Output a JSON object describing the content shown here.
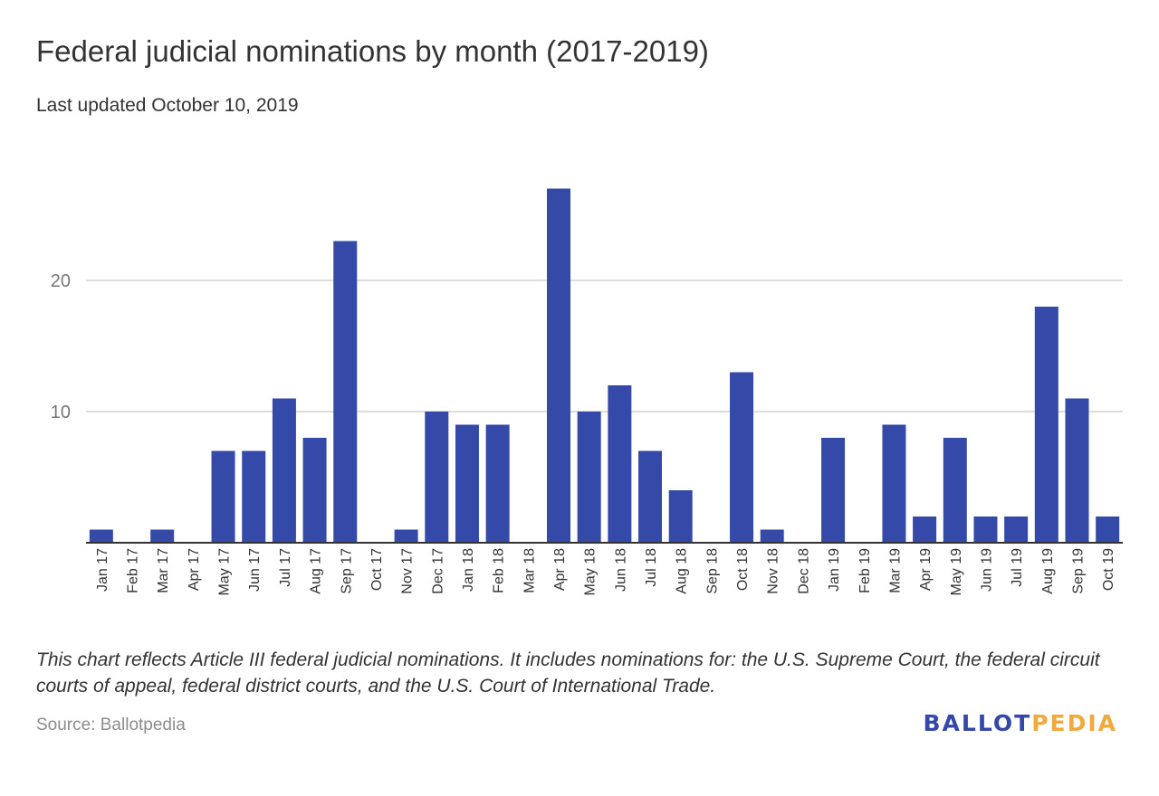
{
  "header": {
    "title": "Federal judicial nominations by month (2017-2019)",
    "subtitle": "Last updated October 10, 2019"
  },
  "footer": {
    "note": "This chart reflects Article III federal judicial nominations. It includes nominations for: the U.S. Supreme Court, the federal circuit courts of appeal, federal district courts, and the U.S. Court of International Trade.",
    "source": "Source: Ballotpedia",
    "brand_part1": "BALLOT",
    "brand_part2": "PEDIA",
    "brand_colors": {
      "primary": "#3448a8",
      "accent": "#f0a93b"
    }
  },
  "chart_data": {
    "type": "bar",
    "title": "Federal judicial nominations by month (2017-2019)",
    "subtitle": "Last updated October 10, 2019",
    "xlabel": "",
    "ylabel": "",
    "ylim": [
      0,
      28
    ],
    "yticks": [
      10,
      20
    ],
    "grid": true,
    "legend": "none",
    "bar_color": "#3449a8",
    "categories": [
      "Jan 17",
      "Feb 17",
      "Mar 17",
      "Apr 17",
      "May 17",
      "Jun 17",
      "Jul 17",
      "Aug 17",
      "Sep 17",
      "Oct 17",
      "Nov 17",
      "Dec 17",
      "Jan 18",
      "Feb 18",
      "Mar 18",
      "Apr 18",
      "May 18",
      "Jun 18",
      "Jul 18",
      "Aug 18",
      "Sep 18",
      "Oct 18",
      "Nov 18",
      "Dec 18",
      "Jan 19",
      "Feb 19",
      "Mar 19",
      "Apr 19",
      "May 19",
      "Jun 19",
      "Jul 19",
      "Aug 19",
      "Sep 19",
      "Oct 19"
    ],
    "values": [
      1,
      0,
      1,
      0,
      7,
      7,
      11,
      8,
      23,
      0,
      1,
      10,
      9,
      9,
      0,
      27,
      10,
      12,
      7,
      4,
      0,
      13,
      1,
      0,
      8,
      0,
      9,
      2,
      8,
      2,
      2,
      18,
      11,
      2
    ]
  }
}
